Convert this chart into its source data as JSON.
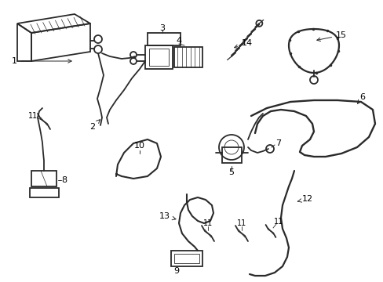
{
  "bg_color": "#ffffff",
  "line_color": "#2a2a2a",
  "lw": 1.3,
  "figsize": [
    4.89,
    3.6
  ],
  "dpi": 100
}
